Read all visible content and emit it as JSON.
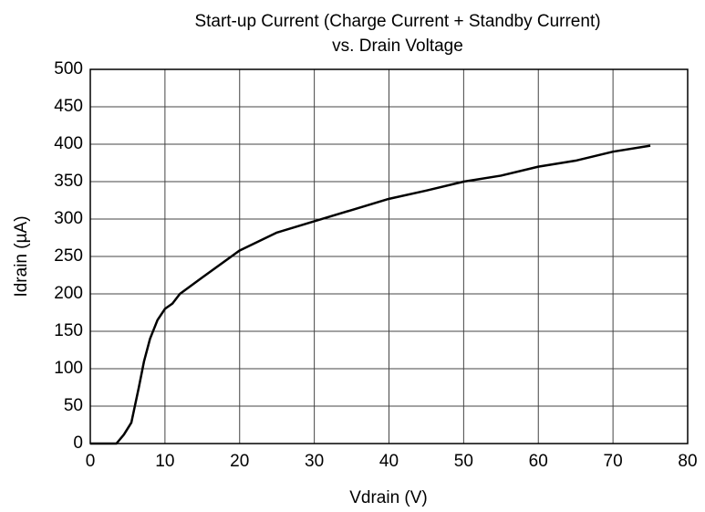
{
  "chart_data": {
    "type": "line",
    "title": [
      "Start-up Current (Charge Current + Standby Current)",
      "vs. Drain Voltage"
    ],
    "x_label": "Vdrain  (V)",
    "y_label": "Idrain  (µA)",
    "x": [
      0,
      3.5,
      4.5,
      5.5,
      6.5,
      7.2,
      8,
      9,
      10,
      11,
      12,
      15,
      20,
      25,
      30,
      35,
      40,
      45,
      50,
      55,
      60,
      65,
      70,
      75
    ],
    "series": [
      {
        "color": "#000000",
        "values": [
          0,
          0,
          12,
          28,
          75,
          110,
          140,
          165,
          180,
          187,
          200,
          222,
          258,
          282,
          297,
          312,
          327,
          338,
          350,
          358,
          370,
          378,
          390,
          398
        ]
      }
    ],
    "xlim": [
      0,
      80
    ],
    "ylim": [
      0,
      500
    ],
    "xticks": [
      0,
      10,
      20,
      30,
      40,
      50,
      60,
      70,
      80
    ],
    "yticks": [
      0,
      50,
      100,
      150,
      200,
      250,
      300,
      350,
      400,
      450,
      500
    ],
    "grid": true
  }
}
